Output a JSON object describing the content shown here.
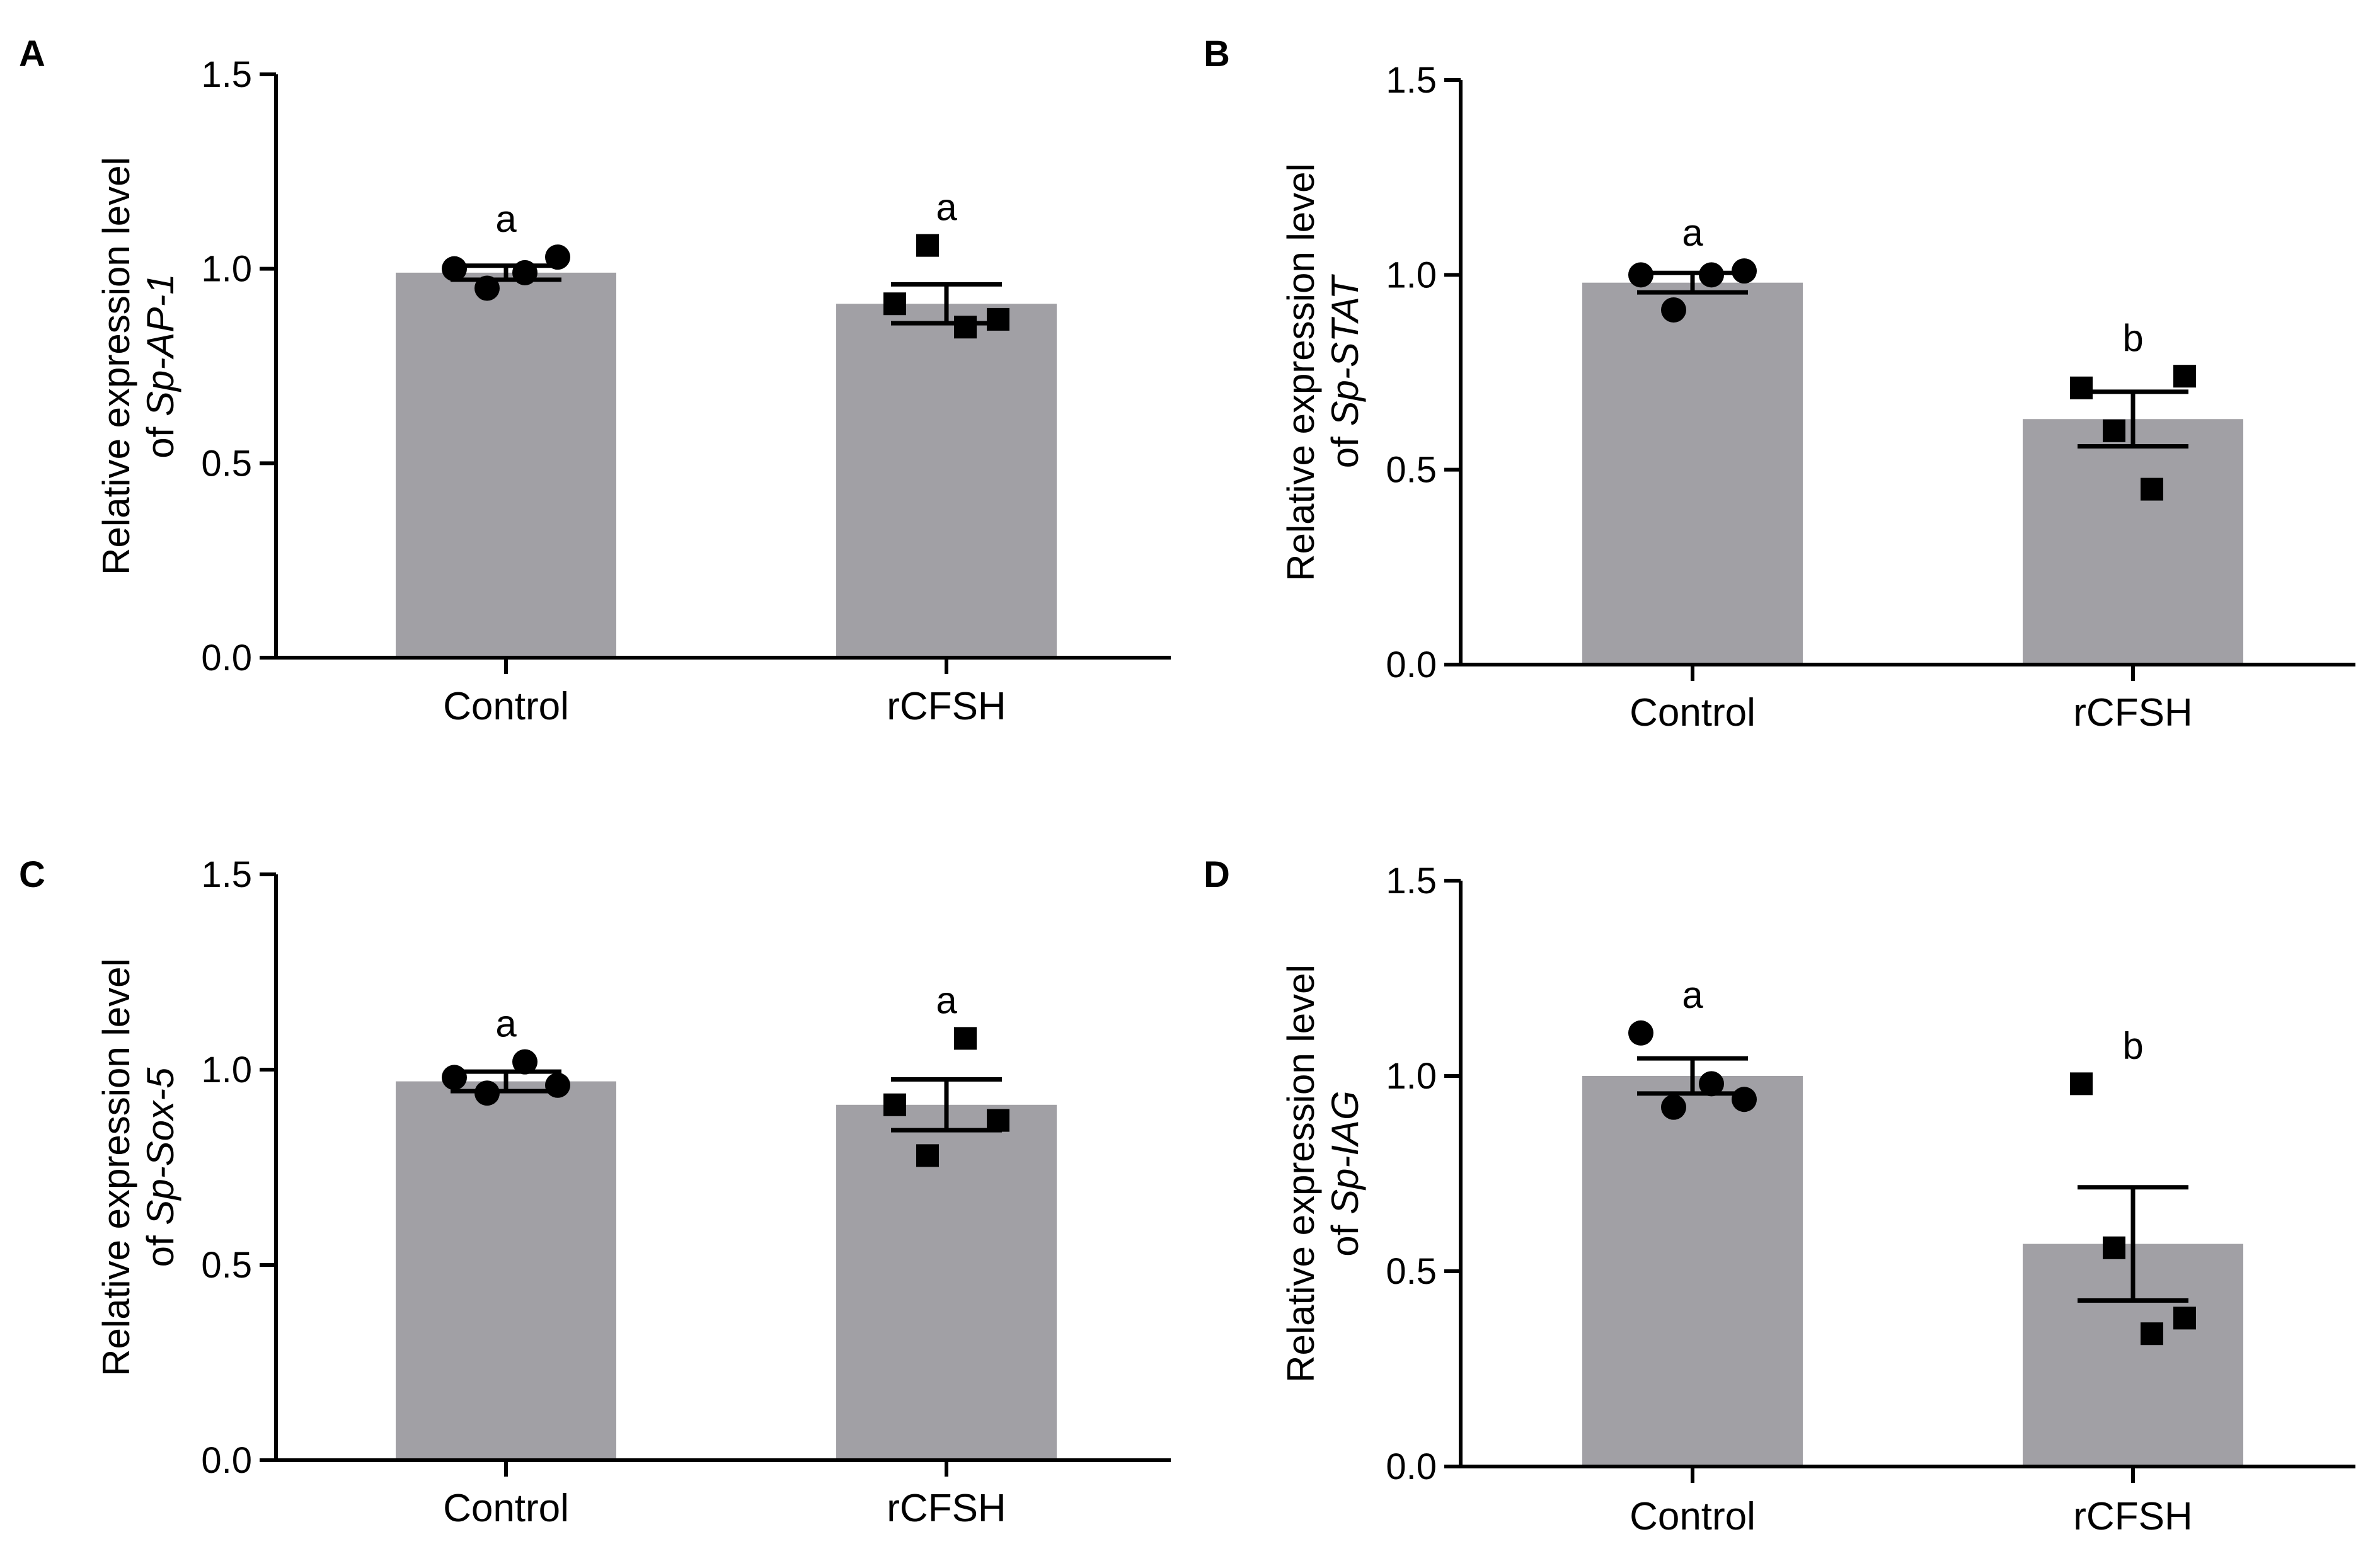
{
  "figure": {
    "bar_color": "#a1a0a5",
    "marker_color": "#000000"
  },
  "chart_data": [
    {
      "panel": "A",
      "type": "bar",
      "categories": [
        "Control",
        "rCFSH"
      ],
      "ylabel_line1": "Relative expression level",
      "ylabel_prefix": "of ",
      "ylabel_gene": "Sp-AP-1",
      "ylim": [
        0,
        1.5
      ],
      "yticks": [
        "0.0",
        "0.5",
        "1.0",
        "1.5"
      ],
      "means": [
        0.99,
        0.91
      ],
      "sem": [
        0.018,
        0.05
      ],
      "points": [
        [
          1.0,
          0.95,
          0.99,
          1.03
        ],
        [
          0.91,
          1.06,
          0.85,
          0.87
        ]
      ],
      "markers": [
        "circle",
        "square"
      ],
      "significance": [
        "a",
        "a"
      ]
    },
    {
      "panel": "B",
      "type": "bar",
      "categories": [
        "Control",
        "rCFSH"
      ],
      "ylabel_line1": "Relative expression level",
      "ylabel_prefix": "of ",
      "ylabel_gene": "Sp-STAT",
      "ylim": [
        0,
        1.5
      ],
      "yticks": [
        "0.0",
        "0.5",
        "1.0",
        "1.5"
      ],
      "means": [
        0.98,
        0.63
      ],
      "sem": [
        0.025,
        0.07
      ],
      "points": [
        [
          1.0,
          0.91,
          1.0,
          1.01
        ],
        [
          0.71,
          0.6,
          0.45,
          0.74
        ]
      ],
      "markers": [
        "circle",
        "square"
      ],
      "significance": [
        "a",
        "b"
      ]
    },
    {
      "panel": "C",
      "type": "bar",
      "categories": [
        "Control",
        "rCFSH"
      ],
      "ylabel_line1": "Relative expression level",
      "ylabel_prefix": "of ",
      "ylabel_gene": "Sp-Sox-5",
      "ylim": [
        0,
        1.5
      ],
      "yticks": [
        "0.0",
        "0.5",
        "1.0",
        "1.5"
      ],
      "means": [
        0.97,
        0.91
      ],
      "sem": [
        0.025,
        0.065
      ],
      "points": [
        [
          0.98,
          0.94,
          1.02,
          0.96
        ],
        [
          0.91,
          0.78,
          1.08,
          0.87
        ]
      ],
      "markers": [
        "circle",
        "square"
      ],
      "significance": [
        "a",
        "a"
      ]
    },
    {
      "panel": "D",
      "type": "bar",
      "categories": [
        "Control",
        "rCFSH"
      ],
      "ylabel_line1": "Relative expression level",
      "ylabel_prefix": "of ",
      "ylabel_gene": "Sp-IAG",
      "ylim": [
        0,
        1.5
      ],
      "yticks": [
        "0.0",
        "0.5",
        "1.0",
        "1.5"
      ],
      "means": [
        1.0,
        0.57
      ],
      "sem": [
        0.045,
        0.145
      ],
      "points": [
        [
          1.11,
          0.92,
          0.98,
          0.94
        ],
        [
          0.98,
          0.56,
          0.34,
          0.38
        ]
      ],
      "markers": [
        "circle",
        "square"
      ],
      "significance": [
        "a",
        "b"
      ]
    }
  ]
}
